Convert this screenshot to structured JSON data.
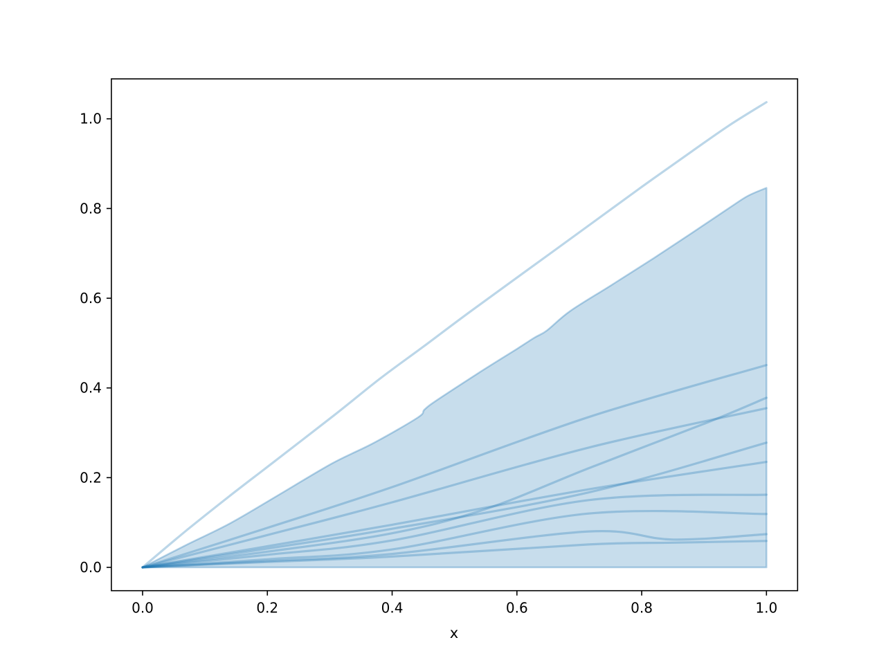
{
  "chart_data": {
    "type": "line",
    "title": "",
    "xlabel": "x",
    "ylabel": "",
    "xlim": [
      -0.05,
      1.05
    ],
    "ylim": [
      -0.052,
      1.089
    ],
    "grid": false,
    "legend": "none",
    "x_tick_values": [
      0.0,
      0.2,
      0.4,
      0.6,
      0.8,
      1.0
    ],
    "x_tick_labels": [
      "0.0",
      "0.2",
      "0.4",
      "0.6",
      "0.8",
      "1.0"
    ],
    "y_tick_values": [
      0.0,
      0.2,
      0.4,
      0.6,
      0.8,
      1.0
    ],
    "y_tick_labels": [
      "0.0",
      "0.2",
      "0.4",
      "0.6",
      "0.8",
      "1.0"
    ],
    "colors": {
      "series_base": "#1f77b4",
      "series_alpha": 0.3,
      "top_curve_alpha": 0.3,
      "fill_alpha": 0.25,
      "fill_edge_alpha": 0.32,
      "axis": "#000000",
      "background": "#ffffff"
    },
    "envelope": {
      "name": "shaded-band",
      "lower_y": 0.0,
      "upper": [
        [
          0.0,
          0.0
        ],
        [
          0.07,
          0.05
        ],
        [
          0.14,
          0.098
        ],
        [
          0.22,
          0.163
        ],
        [
          0.304,
          0.232
        ],
        [
          0.37,
          0.277
        ],
        [
          0.441,
          0.334
        ],
        [
          0.452,
          0.352
        ],
        [
          0.472,
          0.373
        ],
        [
          0.537,
          0.432
        ],
        [
          0.6,
          0.487
        ],
        [
          0.628,
          0.512
        ],
        [
          0.648,
          0.528
        ],
        [
          0.685,
          0.571
        ],
        [
          0.75,
          0.628
        ],
        [
          0.82,
          0.69
        ],
        [
          0.881,
          0.746
        ],
        [
          0.94,
          0.801
        ],
        [
          0.97,
          0.828
        ],
        [
          1.0,
          0.846
        ]
      ]
    },
    "top_curve": {
      "name": "upper-bound-curve",
      "points": [
        [
          0.0,
          0.0
        ],
        [
          0.07,
          0.082
        ],
        [
          0.1376,
          0.157
        ],
        [
          0.2,
          0.224
        ],
        [
          0.307,
          0.339
        ],
        [
          0.3818,
          0.422
        ],
        [
          0.45,
          0.492
        ],
        [
          0.526,
          0.571
        ],
        [
          0.62,
          0.666
        ],
        [
          0.715,
          0.762
        ],
        [
          0.8,
          0.848
        ],
        [
          0.881,
          0.928
        ],
        [
          0.94,
          0.985
        ],
        [
          1.0,
          1.037
        ]
      ]
    },
    "series": [
      {
        "name": "line-1",
        "end_value": 0.451,
        "points": [
          [
            0,
            0
          ],
          [
            0.2,
            0.088
          ],
          [
            0.4,
            0.179
          ],
          [
            0.715,
            0.335
          ],
          [
            1,
            0.451
          ]
        ]
      },
      {
        "name": "line-2",
        "end_value": 0.378,
        "points": [
          [
            0,
            0
          ],
          [
            0.2,
            0.035
          ],
          [
            0.4,
            0.076
          ],
          [
            0.55,
            0.13
          ],
          [
            0.715,
            0.221
          ],
          [
            0.9,
            0.32
          ],
          [
            1,
            0.378
          ]
        ]
      },
      {
        "name": "line-3",
        "end_value": 0.355,
        "points": [
          [
            0,
            0
          ],
          [
            0.2,
            0.072
          ],
          [
            0.4,
            0.145
          ],
          [
            0.715,
            0.267
          ],
          [
            1,
            0.355
          ]
        ]
      },
      {
        "name": "line-4",
        "end_value": 0.278,
        "points": [
          [
            0,
            0
          ],
          [
            0.2,
            0.042
          ],
          [
            0.4,
            0.086
          ],
          [
            0.715,
            0.167
          ],
          [
            1,
            0.278
          ]
        ]
      },
      {
        "name": "line-5",
        "end_value": 0.235,
        "points": [
          [
            0,
            0
          ],
          [
            0.2,
            0.047
          ],
          [
            0.4,
            0.095
          ],
          [
            0.715,
            0.174
          ],
          [
            1,
            0.235
          ]
        ]
      },
      {
        "name": "line-6",
        "end_value": 0.162,
        "points": [
          [
            0,
            0
          ],
          [
            0.2,
            0.028
          ],
          [
            0.4,
            0.06
          ],
          [
            0.715,
            0.15
          ],
          [
            1,
            0.162
          ]
        ]
      },
      {
        "name": "line-7",
        "end_value": 0.119,
        "points": [
          [
            0,
            0
          ],
          [
            0.2,
            0.018
          ],
          [
            0.4,
            0.04
          ],
          [
            0.715,
            0.12
          ],
          [
            1,
            0.119
          ]
        ]
      },
      {
        "name": "line-8",
        "end_value": 0.074,
        "points": [
          [
            0,
            0
          ],
          [
            0.2,
            0.014
          ],
          [
            0.4,
            0.03
          ],
          [
            0.715,
            0.08
          ],
          [
            0.85,
            0.062
          ],
          [
            1,
            0.074
          ]
        ]
      },
      {
        "name": "line-9",
        "end_value": 0.059,
        "points": [
          [
            0,
            0
          ],
          [
            0.2,
            0.012
          ],
          [
            0.4,
            0.024
          ],
          [
            0.715,
            0.051
          ],
          [
            0.85,
            0.055
          ],
          [
            1,
            0.059
          ]
        ]
      }
    ]
  }
}
